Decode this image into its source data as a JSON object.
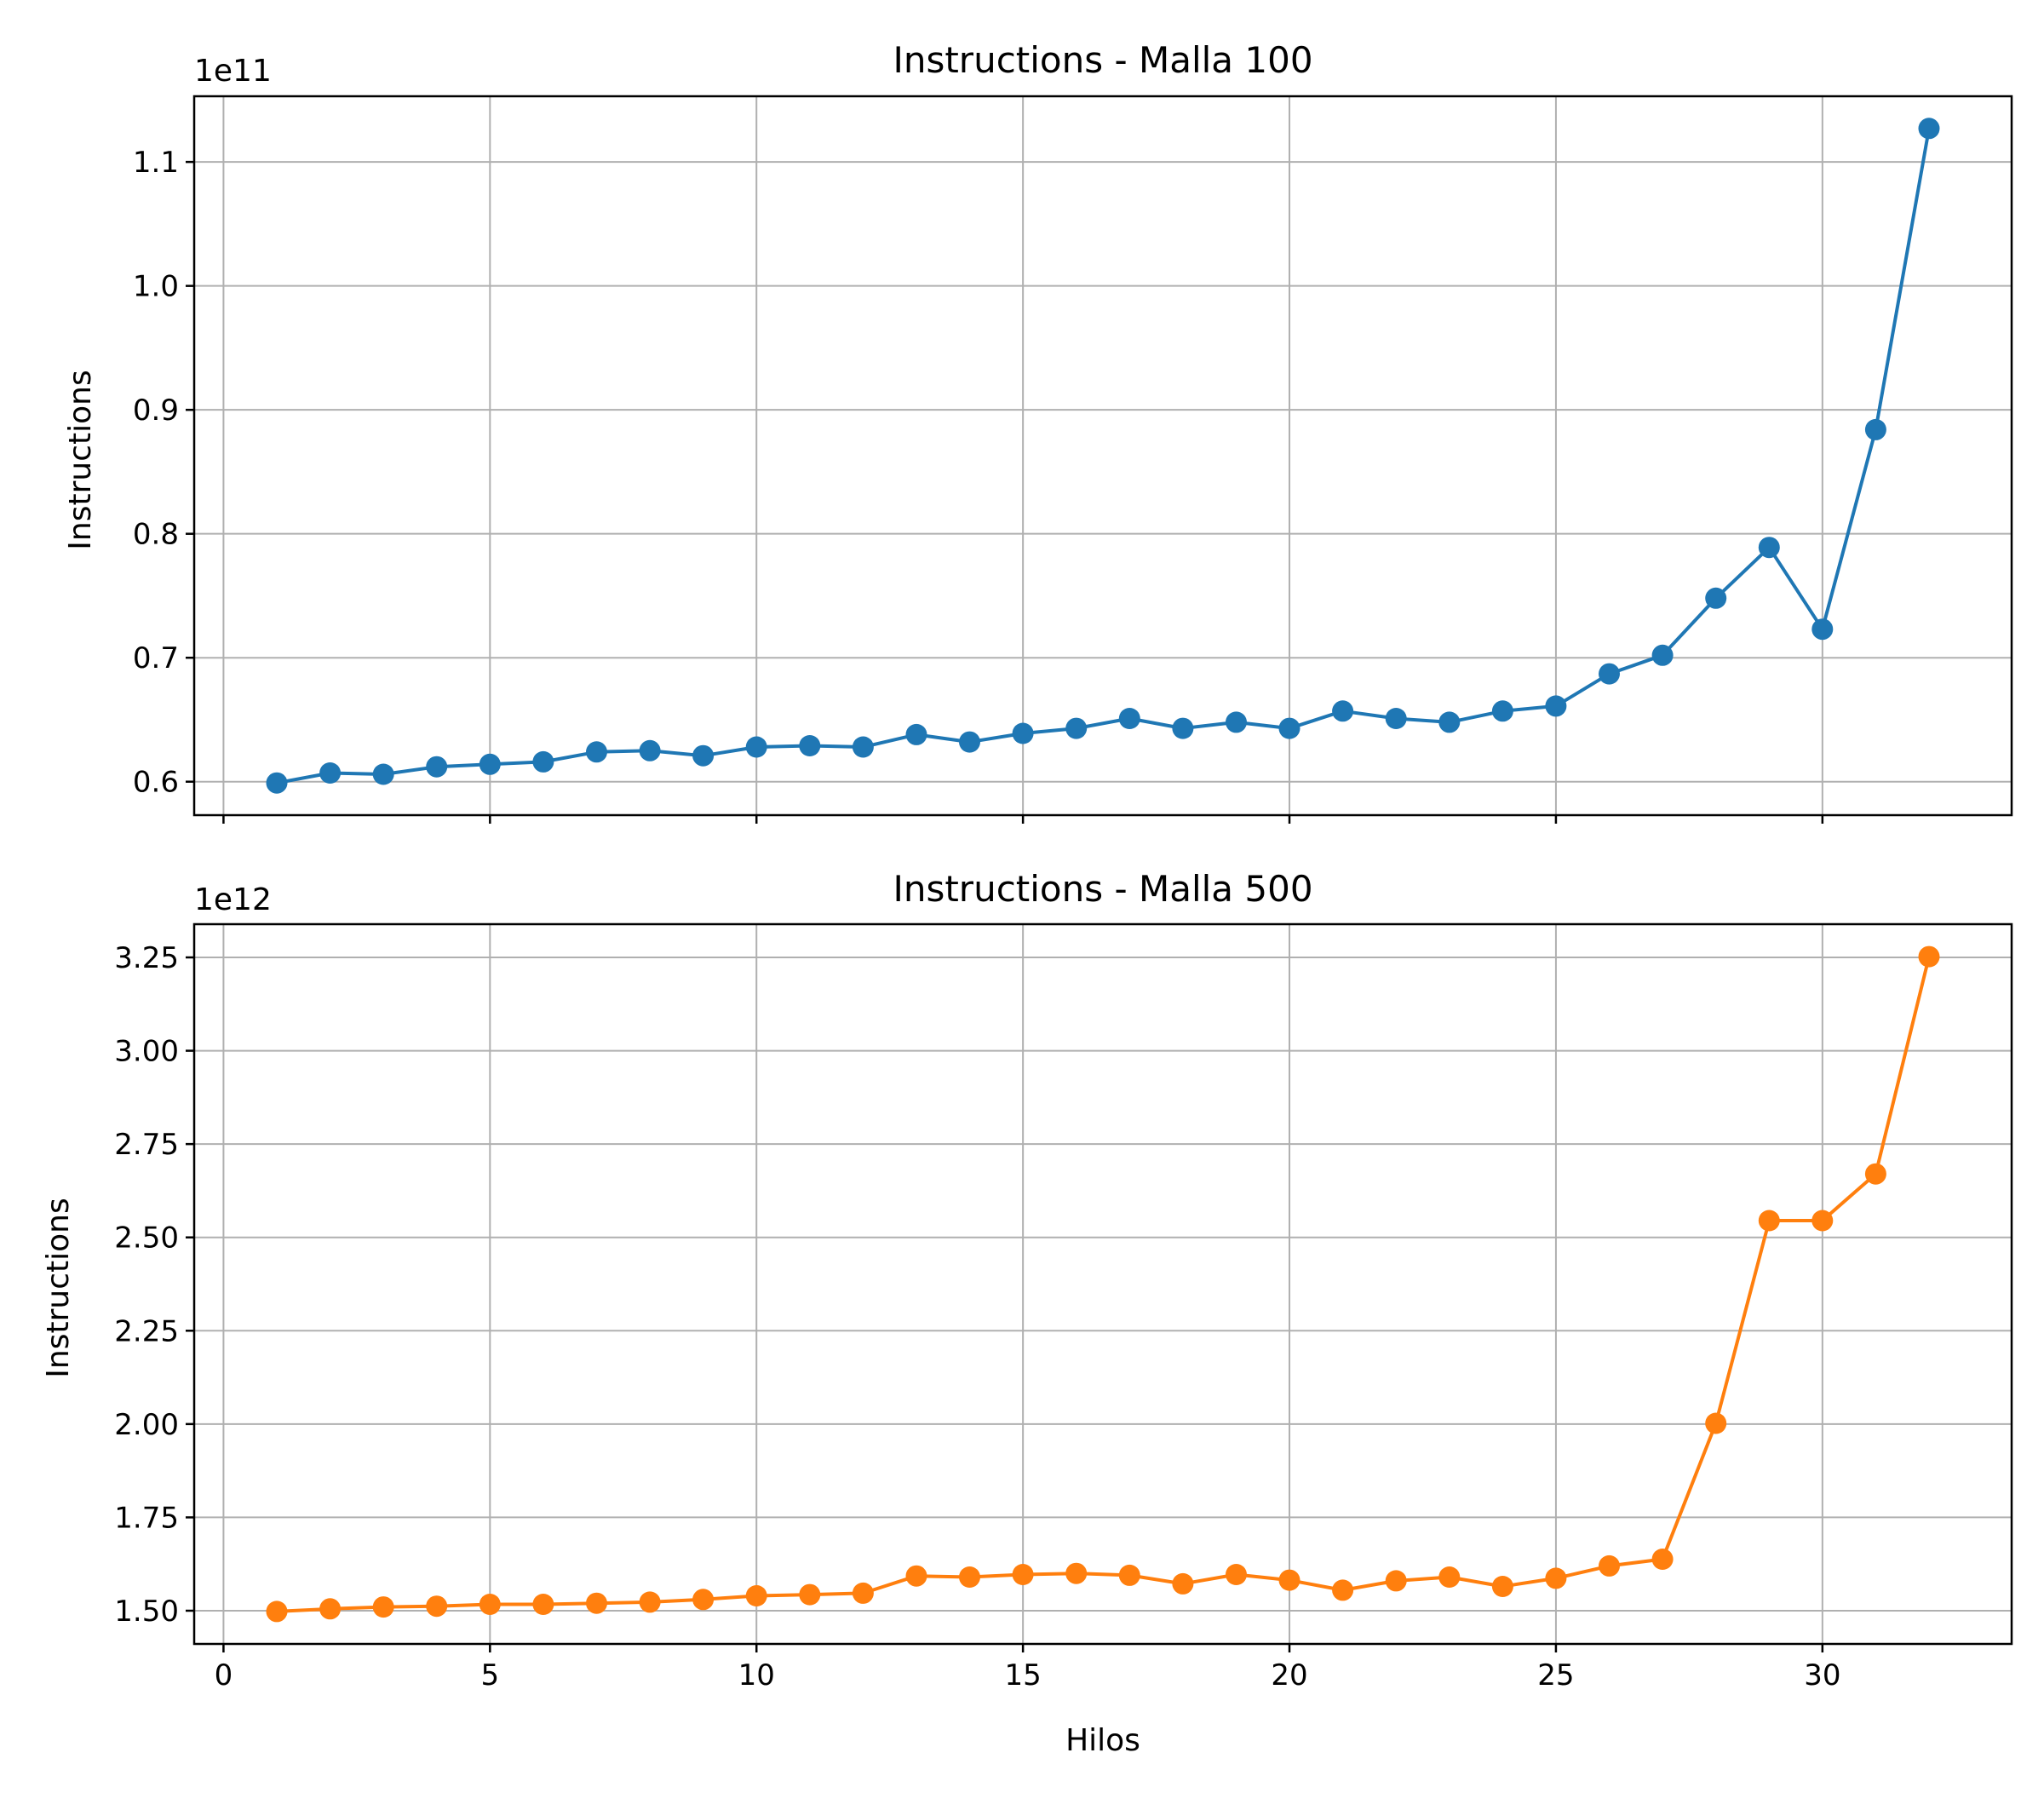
{
  "figure": {
    "xlabel": "Hilos"
  },
  "chart_data": [
    {
      "type": "line",
      "title": "Instructions - Malla 100",
      "ylabel": "Instructions",
      "offset_text": "1e11",
      "color": "#1f77b4",
      "x": [
        1,
        2,
        3,
        4,
        5,
        6,
        7,
        8,
        9,
        10,
        11,
        12,
        13,
        14,
        15,
        16,
        17,
        18,
        19,
        20,
        21,
        22,
        23,
        24,
        25,
        26,
        27,
        28,
        29,
        30,
        31,
        32
      ],
      "values": [
        0.599,
        0.607,
        0.606,
        0.612,
        0.614,
        0.616,
        0.624,
        0.625,
        0.621,
        0.628,
        0.629,
        0.628,
        0.638,
        0.632,
        0.639,
        0.643,
        0.651,
        0.643,
        0.648,
        0.643,
        0.657,
        0.651,
        0.648,
        0.657,
        0.661,
        0.687,
        0.702,
        0.748,
        0.789,
        0.723,
        0.884,
        1.127
      ],
      "xlim": [
        -0.55,
        33.55
      ],
      "ylim": [
        0.573,
        1.153
      ],
      "xticks": [
        0,
        5,
        10,
        15,
        20,
        25,
        30
      ],
      "xtick_labels": [
        "",
        "",
        "",
        "",
        "",
        "",
        ""
      ],
      "yticks": [
        0.6,
        0.7,
        0.8,
        0.9,
        1.0,
        1.1
      ],
      "ytick_labels": [
        "0.6",
        "0.7",
        "0.8",
        "0.9",
        "1.0",
        "1.1"
      ],
      "grid": true
    },
    {
      "type": "line",
      "title": "Instructions - Malla 500",
      "ylabel": "Instructions",
      "offset_text": "1e12",
      "color": "#ff7f0e",
      "x": [
        1,
        2,
        3,
        4,
        5,
        6,
        7,
        8,
        9,
        10,
        11,
        12,
        13,
        14,
        15,
        16,
        17,
        18,
        19,
        20,
        21,
        22,
        23,
        24,
        25,
        26,
        27,
        28,
        29,
        30,
        31,
        32
      ],
      "values": [
        1.498,
        1.505,
        1.51,
        1.512,
        1.517,
        1.517,
        1.52,
        1.523,
        1.53,
        1.54,
        1.543,
        1.547,
        1.593,
        1.59,
        1.597,
        1.6,
        1.595,
        1.572,
        1.597,
        1.582,
        1.555,
        1.58,
        1.59,
        1.565,
        1.587,
        1.62,
        1.638,
        2.002,
        2.545,
        2.545,
        2.67,
        3.252
      ],
      "xlim": [
        -0.55,
        33.55
      ],
      "ylim": [
        1.411,
        3.339
      ],
      "xticks": [
        0,
        5,
        10,
        15,
        20,
        25,
        30
      ],
      "xtick_labels": [
        "0",
        "5",
        "10",
        "15",
        "20",
        "25",
        "30"
      ],
      "yticks": [
        1.5,
        1.75,
        2.0,
        2.25,
        2.5,
        2.75,
        3.0,
        3.25
      ],
      "ytick_labels": [
        "1.50",
        "1.75",
        "2.00",
        "2.25",
        "2.50",
        "2.75",
        "3.00",
        "3.25"
      ],
      "grid": true
    }
  ]
}
